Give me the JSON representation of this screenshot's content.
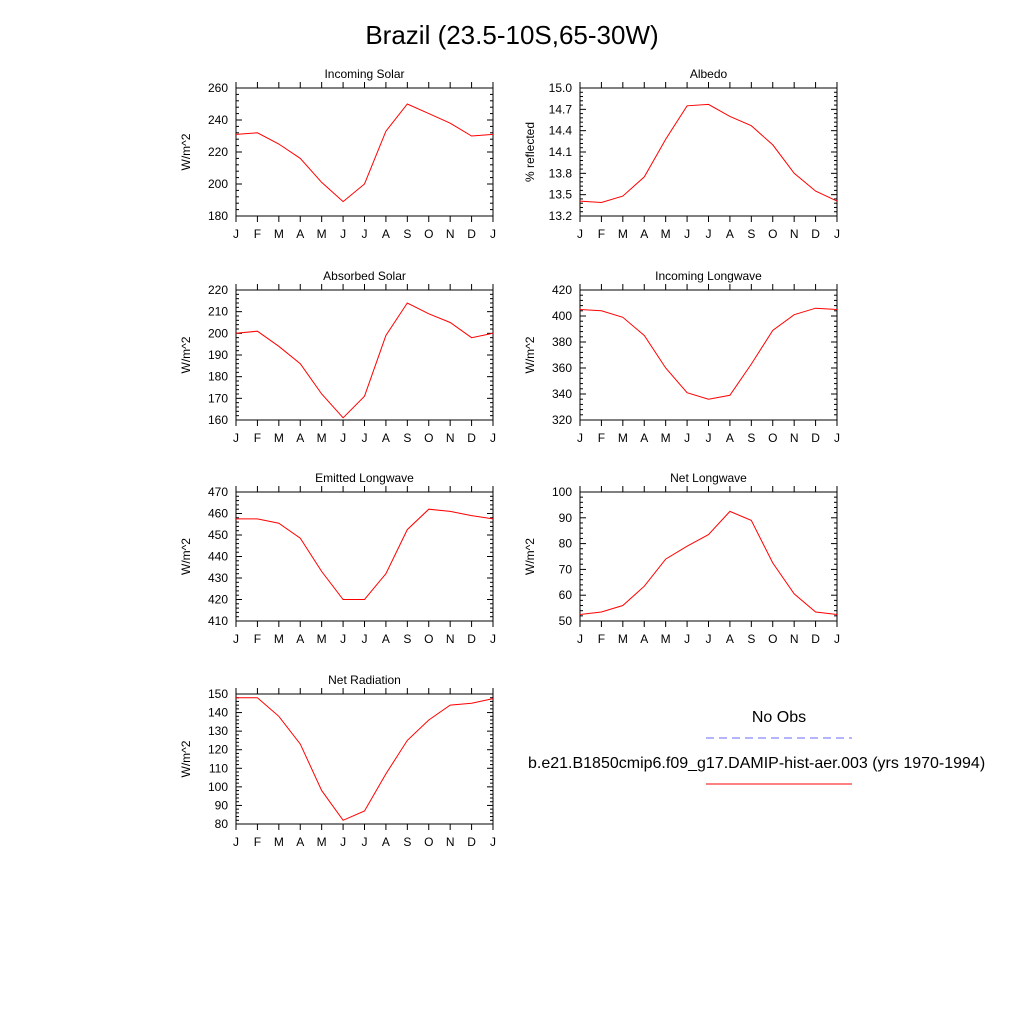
{
  "page": {
    "title": "Brazil (23.5-10S,65-30W)"
  },
  "legend": {
    "entries": [
      {
        "label": "No Obs",
        "color": "#6b6bff",
        "dash": "dashed"
      },
      {
        "label": "b.e21.B1850cmip6.f09_g17.DAMIP-hist-aer.003 (yrs 1970-1994)",
        "color": "#ff0000",
        "dash": "solid"
      }
    ]
  },
  "chart_data": [
    {
      "type": "line",
      "title": "Incoming Solar",
      "ylabel": "W/m^2",
      "categories": [
        "J",
        "F",
        "M",
        "A",
        "M",
        "J",
        "J",
        "A",
        "S",
        "O",
        "N",
        "D",
        "J"
      ],
      "ylim": [
        180,
        260
      ],
      "yticks": [
        "180",
        "200",
        "220",
        "240",
        "260"
      ],
      "series": [
        {
          "values": [
            231,
            232,
            225,
            216,
            201,
            189,
            200,
            233,
            250,
            244,
            238,
            230,
            231
          ]
        }
      ]
    },
    {
      "type": "line",
      "title": "Albedo",
      "ylabel": "% reflected",
      "categories": [
        "J",
        "F",
        "M",
        "A",
        "M",
        "J",
        "J",
        "A",
        "S",
        "O",
        "N",
        "D",
        "J"
      ],
      "ylim": [
        13.2,
        15.0
      ],
      "yticks": [
        "13.2",
        "13.5",
        "13.8",
        "14.1",
        "14.4",
        "14.7",
        "15.0"
      ],
      "series": [
        {
          "values": [
            13.41,
            13.39,
            13.48,
            13.75,
            14.28,
            14.75,
            14.77,
            14.6,
            14.47,
            14.2,
            13.8,
            13.55,
            13.41
          ]
        }
      ]
    },
    {
      "type": "line",
      "title": "Absorbed Solar",
      "ylabel": "W/m^2",
      "categories": [
        "J",
        "F",
        "M",
        "A",
        "M",
        "J",
        "J",
        "A",
        "S",
        "O",
        "N",
        "D",
        "J"
      ],
      "ylim": [
        160,
        220
      ],
      "yticks": [
        "160",
        "170",
        "180",
        "190",
        "200",
        "210",
        "220"
      ],
      "series": [
        {
          "values": [
            200,
            201,
            194,
            186,
            172,
            161,
            171,
            199,
            214,
            209,
            205,
            198,
            200
          ]
        }
      ]
    },
    {
      "type": "line",
      "title": "Incoming Longwave",
      "ylabel": "W/m^2",
      "categories": [
        "J",
        "F",
        "M",
        "A",
        "M",
        "J",
        "J",
        "A",
        "S",
        "O",
        "N",
        "D",
        "J"
      ],
      "ylim": [
        320,
        420
      ],
      "yticks": [
        "320",
        "340",
        "360",
        "380",
        "400",
        "420"
      ],
      "series": [
        {
          "values": [
            405,
            404,
            399,
            385,
            360,
            341,
            336,
            339,
            363,
            389,
            401,
            406,
            405
          ]
        }
      ]
    },
    {
      "type": "line",
      "title": "Emitted Longwave",
      "ylabel": "W/m^2",
      "categories": [
        "J",
        "F",
        "M",
        "A",
        "M",
        "J",
        "J",
        "A",
        "S",
        "O",
        "N",
        "D",
        "J"
      ],
      "ylim": [
        410,
        470
      ],
      "yticks": [
        "410",
        "420",
        "430",
        "440",
        "450",
        "460",
        "470"
      ],
      "series": [
        {
          "values": [
            457.5,
            457.5,
            455.5,
            448.5,
            433,
            420,
            420,
            432,
            452.5,
            462,
            461,
            459,
            457.5
          ]
        }
      ]
    },
    {
      "type": "line",
      "title": "Net Longwave",
      "ylabel": "W/m^2",
      "categories": [
        "J",
        "F",
        "M",
        "A",
        "M",
        "J",
        "J",
        "A",
        "S",
        "O",
        "N",
        "D",
        "J"
      ],
      "ylim": [
        50,
        100
      ],
      "yticks": [
        "50",
        "60",
        "70",
        "80",
        "90",
        "100"
      ],
      "series": [
        {
          "values": [
            52.5,
            53.5,
            56,
            63.5,
            74,
            79,
            83.5,
            92.5,
            89,
            72.5,
            60.5,
            53.5,
            52.5
          ]
        }
      ]
    },
    {
      "type": "line",
      "title": "Net Radiation",
      "ylabel": "W/m^2",
      "categories": [
        "J",
        "F",
        "M",
        "A",
        "M",
        "J",
        "J",
        "A",
        "S",
        "O",
        "N",
        "D",
        "J"
      ],
      "ylim": [
        80,
        150
      ],
      "yticks": [
        "80",
        "90",
        "100",
        "110",
        "120",
        "130",
        "140",
        "150"
      ],
      "series": [
        {
          "values": [
            148,
            148,
            138,
            123,
            98,
            82,
            87,
            107,
            125,
            136,
            144,
            145,
            147.5
          ]
        }
      ]
    }
  ]
}
